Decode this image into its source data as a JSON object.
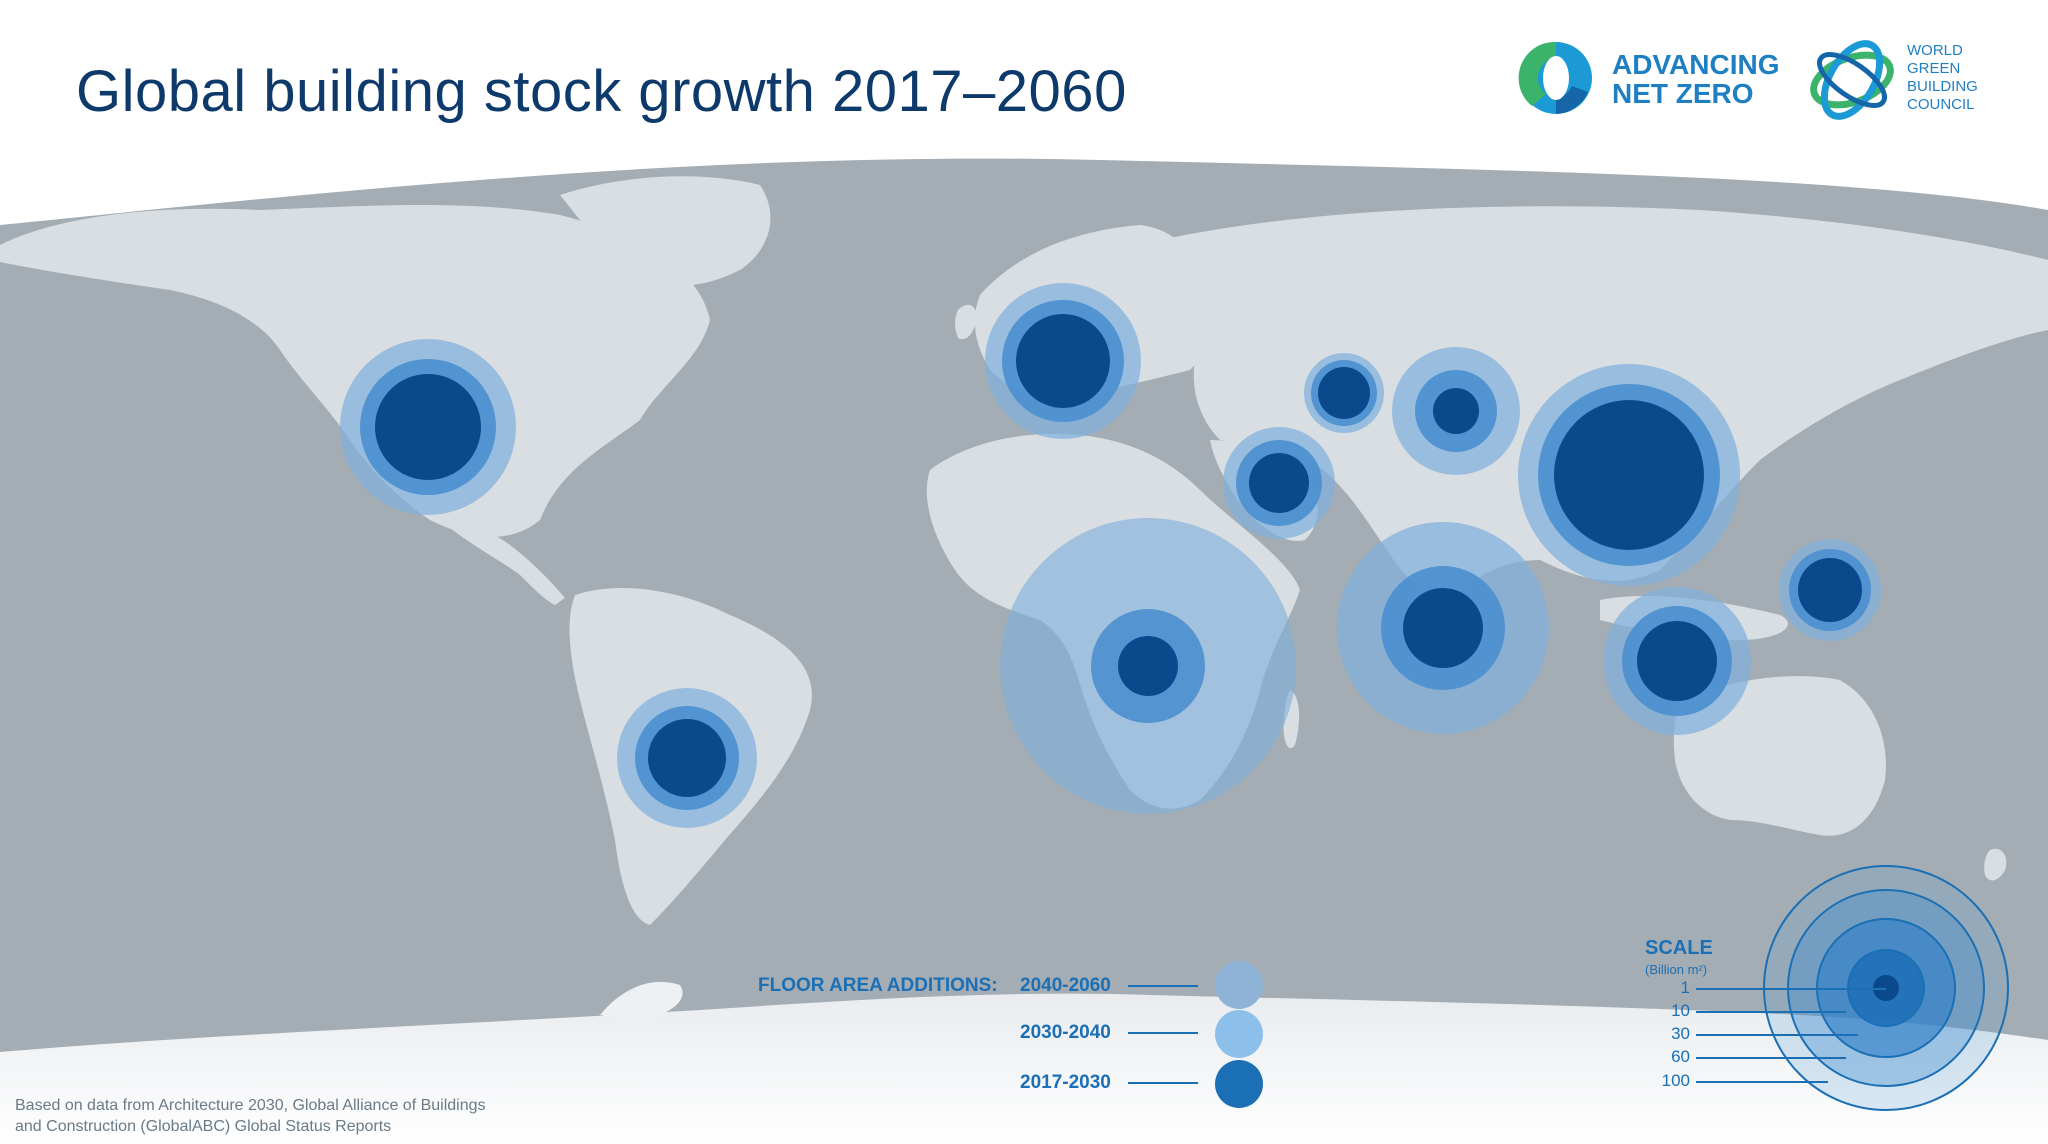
{
  "title": "Global building stock growth 2017–2060",
  "logos": {
    "anz": {
      "line1": "ADVANCING",
      "line2": "NET ZERO"
    },
    "wgbc": {
      "line1": "WORLD",
      "line2": "GREEN",
      "line3": "BUILDING",
      "line4": "COUNCIL"
    }
  },
  "colors": {
    "ocean": "#a4adb4",
    "land": "#d9dee2",
    "band_2040_2060": "#7fb0dc",
    "band_2030_2040": "#4a8fcf",
    "band_2017_2030": "#0a4a8c",
    "text_blue": "#1a6fb5",
    "title_blue": "#0d3a6b"
  },
  "legend": {
    "heading": "FLOOR AREA ADDITIONS:",
    "items": [
      {
        "label": "2040-2060",
        "color": "#8fb3d6"
      },
      {
        "label": "2030-2040",
        "color": "#8cc0ea"
      },
      {
        "label": "2017-2030",
        "color": "#1a6fb5"
      }
    ]
  },
  "scale": {
    "title": "SCALE",
    "unit": "(Billion m²)",
    "values": [
      "1",
      "10",
      "30",
      "60",
      "100"
    ]
  },
  "source": {
    "line1": "Based on data from Architecture 2030, Global Alliance of Buildings",
    "line2": "and Construction (GlobalABC) Global Status Reports"
  }
}
